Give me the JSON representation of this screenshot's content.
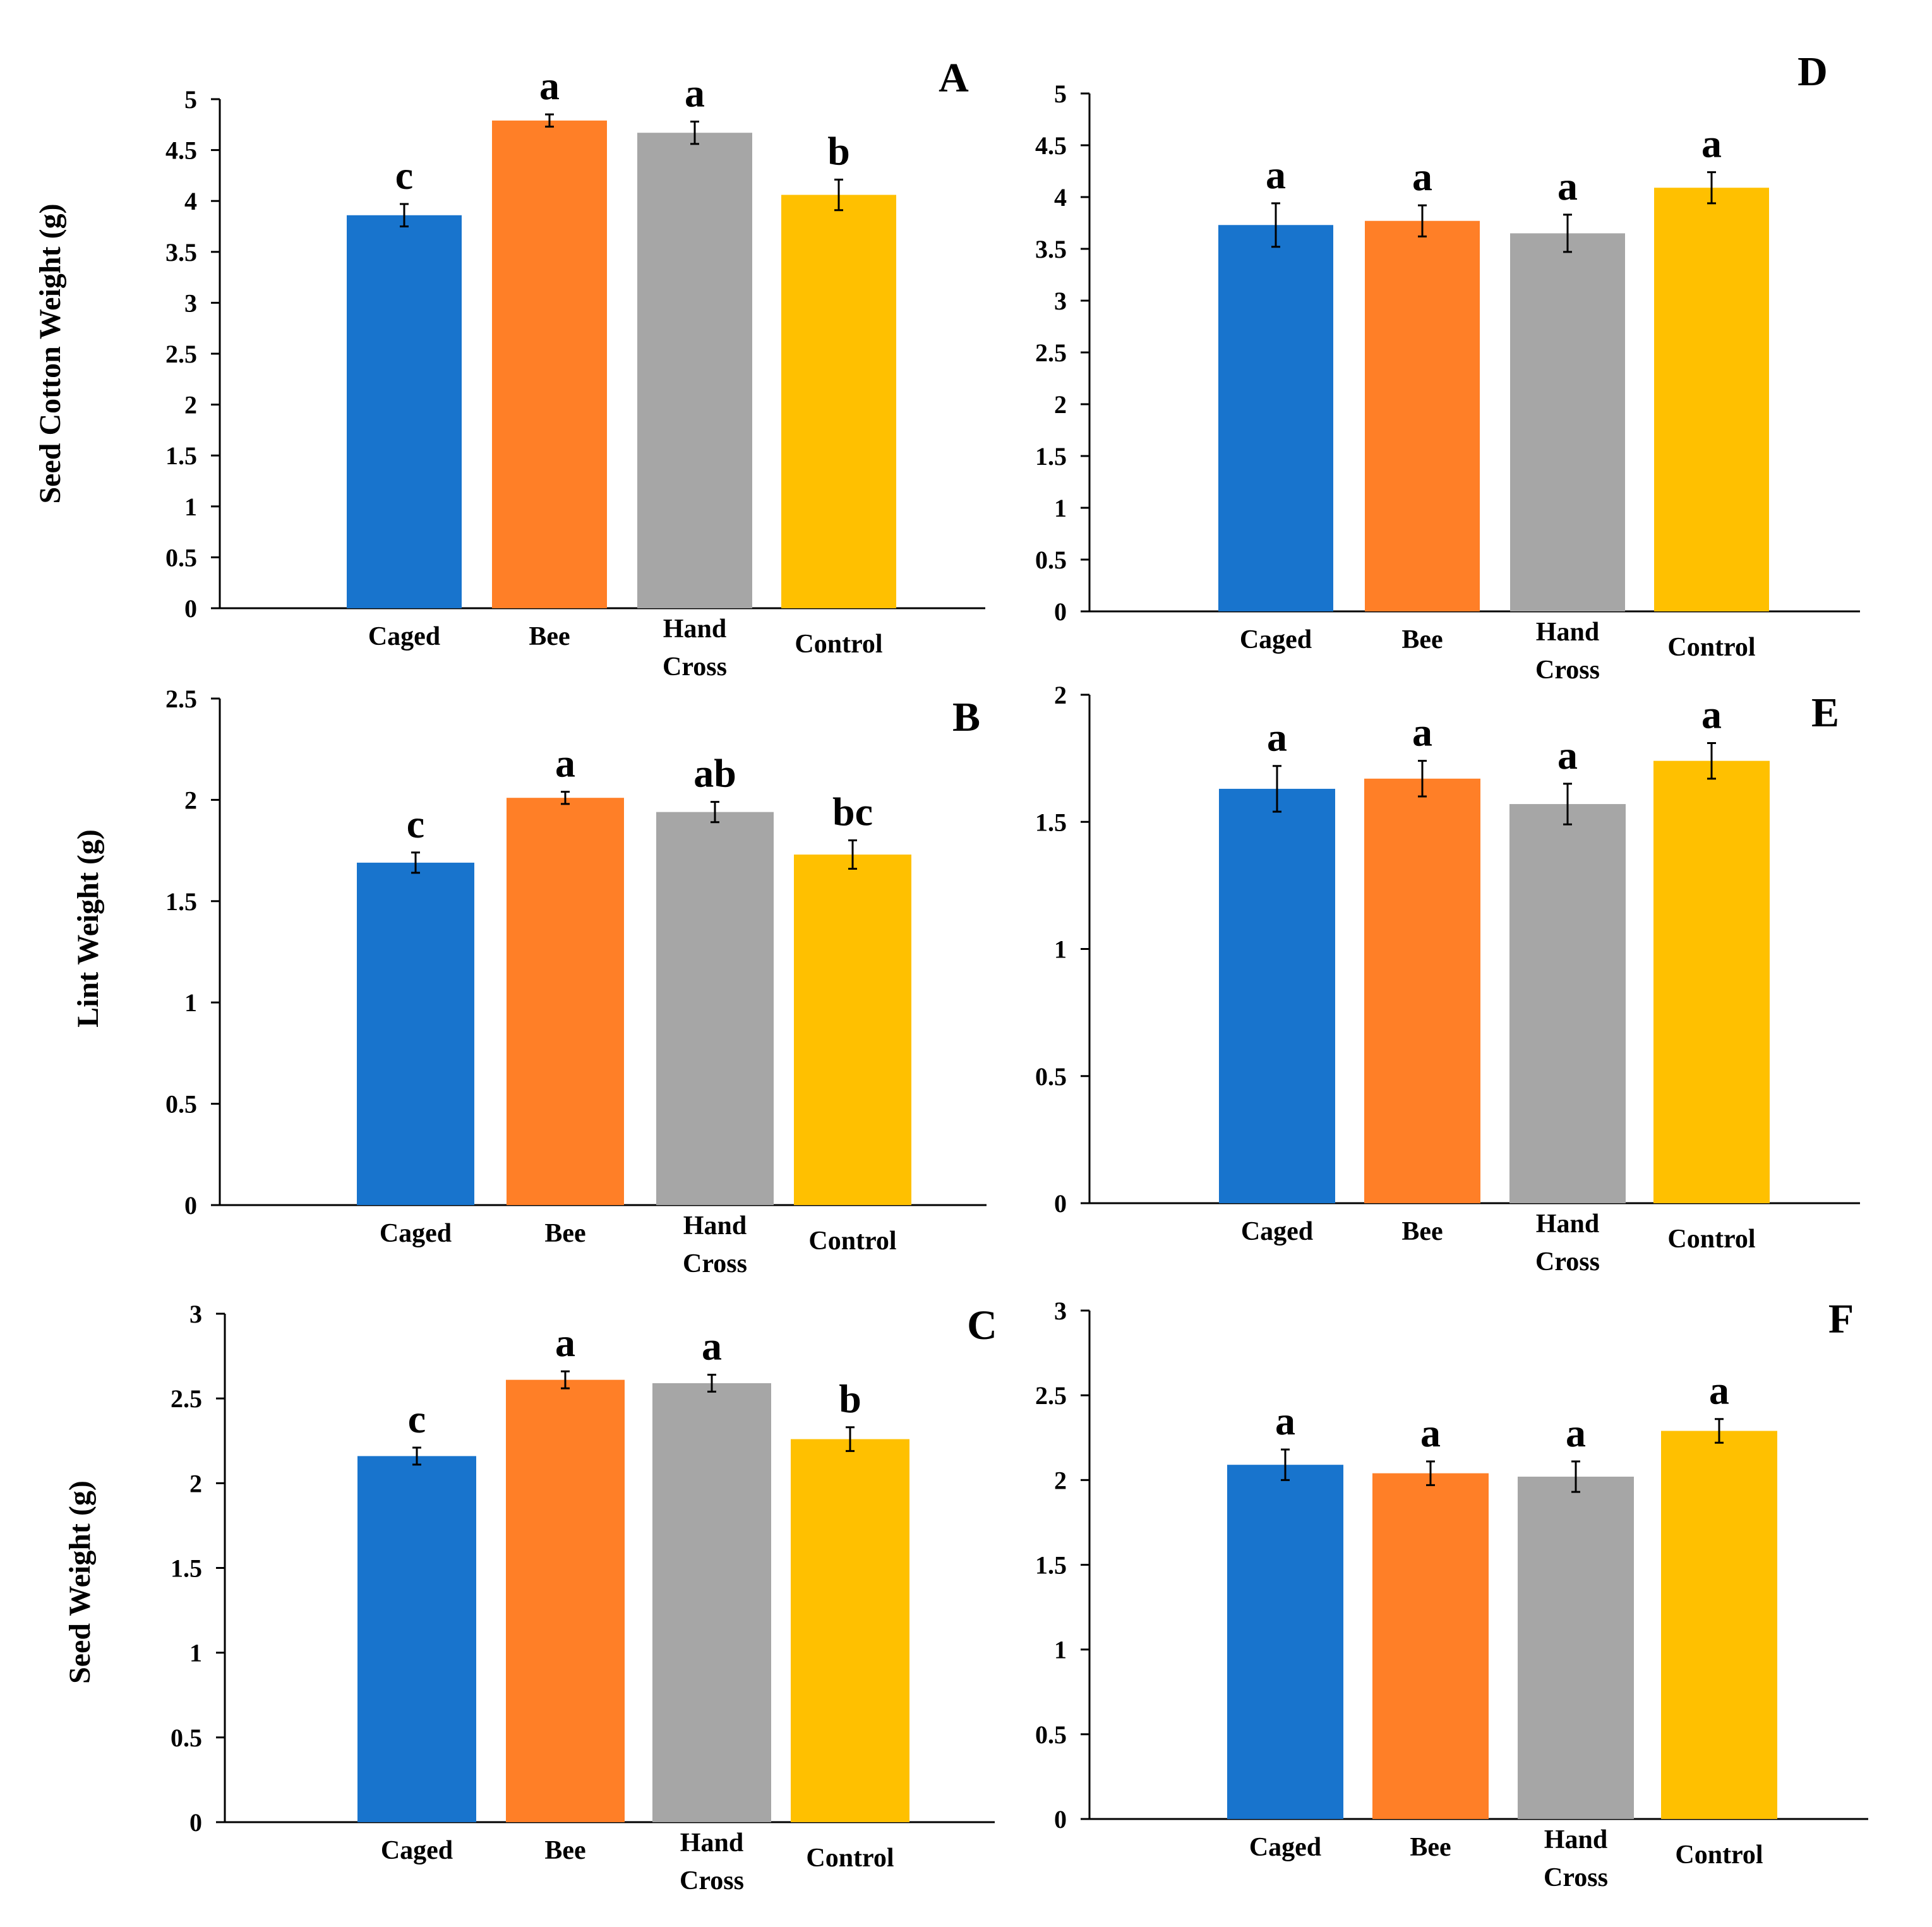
{
  "colors": {
    "Caged": "#1874CD",
    "Bee": "#FF7F27",
    "Hand Cross": "#A6A6A6",
    "Control": "#FFC000"
  },
  "chart_data": [
    {
      "id": "A",
      "type": "bar",
      "panel_label": "A",
      "ylabel": "Seed Cotton Weight (g)",
      "categories": [
        "Caged",
        "Bee",
        "Hand Cross",
        "Control"
      ],
      "category_lines": [
        [
          "Caged"
        ],
        [
          "Bee"
        ],
        [
          "Hand",
          "Cross"
        ],
        [
          "Control"
        ]
      ],
      "values": [
        3.86,
        4.79,
        4.67,
        4.06
      ],
      "errors": [
        0.11,
        0.06,
        0.11,
        0.15
      ],
      "significance": [
        "c",
        "a",
        "a",
        "b"
      ],
      "ylim": [
        0,
        5
      ],
      "yticks": [
        0,
        0.5,
        1,
        1.5,
        2,
        2.5,
        3,
        3.5,
        4,
        4.5,
        5
      ],
      "ytick_labels": [
        "0",
        "0.5",
        "1",
        "1.5",
        "2",
        "2.5",
        "3",
        "3.5",
        "4",
        "4.5",
        "5"
      ]
    },
    {
      "id": "B",
      "type": "bar",
      "panel_label": "B",
      "ylabel": "Lint Weight (g)",
      "categories": [
        "Caged",
        "Bee",
        "Hand Cross",
        "Control"
      ],
      "category_lines": [
        [
          "Caged"
        ],
        [
          "Bee"
        ],
        [
          "Hand",
          "Cross"
        ],
        [
          "Control"
        ]
      ],
      "values": [
        1.69,
        2.01,
        1.94,
        1.73
      ],
      "errors": [
        0.05,
        0.03,
        0.05,
        0.07
      ],
      "significance": [
        "c",
        "a",
        "ab",
        "bc"
      ],
      "ylim": [
        0,
        2.5
      ],
      "yticks": [
        0,
        0.5,
        1,
        1.5,
        2,
        2.5
      ],
      "ytick_labels": [
        "0",
        "0.5",
        "1",
        "1.5",
        "2",
        "2.5"
      ]
    },
    {
      "id": "C",
      "type": "bar",
      "panel_label": "C",
      "ylabel": "Seed Weight (g)",
      "categories": [
        "Caged",
        "Bee",
        "Hand Cross",
        "Control"
      ],
      "category_lines": [
        [
          "Caged"
        ],
        [
          "Bee"
        ],
        [
          "Hand",
          "Cross"
        ],
        [
          "Control"
        ]
      ],
      "values": [
        2.16,
        2.61,
        2.59,
        2.26
      ],
      "errors": [
        0.05,
        0.05,
        0.05,
        0.07
      ],
      "significance": [
        "c",
        "a",
        "a",
        "b"
      ],
      "ylim": [
        0,
        3
      ],
      "yticks": [
        0,
        0.5,
        1,
        1.5,
        2,
        2.5,
        3
      ],
      "ytick_labels": [
        "0",
        "0.5",
        "1",
        "1.5",
        "2",
        "2.5",
        "3"
      ]
    },
    {
      "id": "D",
      "type": "bar",
      "panel_label": "D",
      "ylabel": "",
      "categories": [
        "Caged",
        "Bee",
        "Hand Cross",
        "Control"
      ],
      "category_lines": [
        [
          "Caged"
        ],
        [
          "Bee"
        ],
        [
          "Hand",
          "Cross"
        ],
        [
          "Control"
        ]
      ],
      "values": [
        3.73,
        3.77,
        3.65,
        4.09
      ],
      "errors": [
        0.21,
        0.15,
        0.18,
        0.15
      ],
      "significance": [
        "a",
        "a",
        "a",
        "a"
      ],
      "ylim": [
        0,
        5
      ],
      "yticks": [
        0,
        0.5,
        1,
        1.5,
        2,
        2.5,
        3,
        3.5,
        4,
        4.5,
        5
      ],
      "ytick_labels": [
        "0",
        "0.5",
        "1",
        "1.5",
        "2",
        "2.5",
        "3",
        "3.5",
        "4",
        "4.5",
        "5"
      ]
    },
    {
      "id": "E",
      "type": "bar",
      "panel_label": "E",
      "ylabel": "",
      "categories": [
        "Caged",
        "Bee",
        "Hand Cross",
        "Control"
      ],
      "category_lines": [
        [
          "Caged"
        ],
        [
          "Bee"
        ],
        [
          "Hand",
          "Cross"
        ],
        [
          "Control"
        ]
      ],
      "values": [
        1.63,
        1.67,
        1.57,
        1.74
      ],
      "errors": [
        0.09,
        0.07,
        0.08,
        0.07
      ],
      "significance": [
        "a",
        "a",
        "a",
        "a"
      ],
      "ylim": [
        0,
        2
      ],
      "yticks": [
        0,
        0.5,
        1,
        1.5,
        2
      ],
      "ytick_labels": [
        "0",
        "0.5",
        "1",
        "1.5",
        "2"
      ]
    },
    {
      "id": "F",
      "type": "bar",
      "panel_label": "F",
      "ylabel": "",
      "categories": [
        "Caged",
        "Bee",
        "Hand Cross",
        "Control"
      ],
      "category_lines": [
        [
          "Caged"
        ],
        [
          "Bee"
        ],
        [
          "Hand",
          "Cross"
        ],
        [
          "Control"
        ]
      ],
      "values": [
        2.09,
        2.04,
        2.02,
        2.29
      ],
      "errors": [
        0.09,
        0.07,
        0.09,
        0.07
      ],
      "significance": [
        "a",
        "a",
        "a",
        "a"
      ],
      "ylim": [
        0,
        3
      ],
      "yticks": [
        0,
        0.5,
        1,
        1.5,
        2,
        2.5,
        3
      ],
      "ytick_labels": [
        "0",
        "0.5",
        "1",
        "1.5",
        "2",
        "2.5",
        "3"
      ]
    }
  ]
}
